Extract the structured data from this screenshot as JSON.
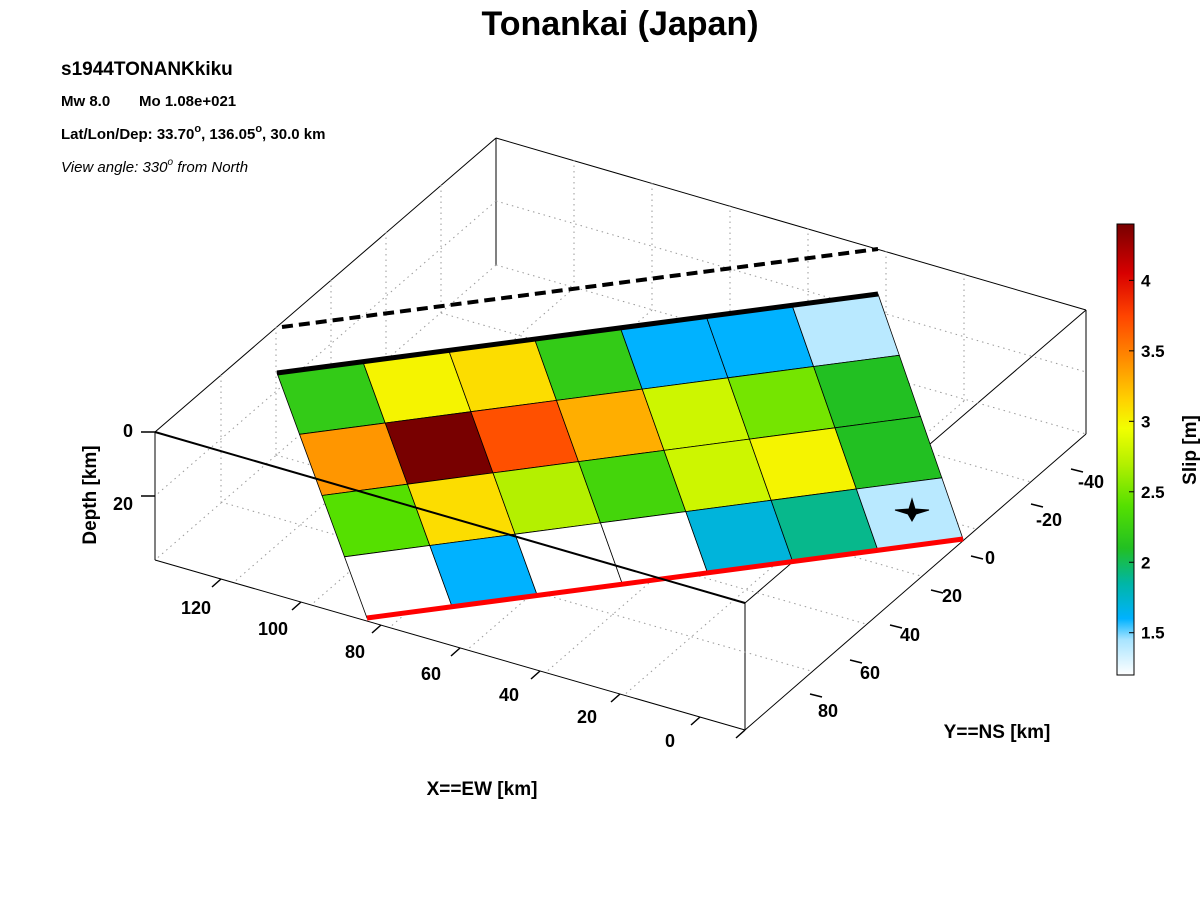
{
  "header": {
    "title": "Tonankai (Japan)",
    "event_id": "s1944TONANKkiku",
    "mw_label": "Mw 8.0",
    "mo_label": "Mo 1.08e+021",
    "location_prefix": "Lat/Lon/Dep: 33.70",
    "location_mid": ", 136.05",
    "location_suffix": ", 30.0 km",
    "degree_mark": "o",
    "view_prefix": "View angle: 330",
    "view_suffix": " from North"
  },
  "chart_data": {
    "type": "heatmap",
    "title": "Tonankai (Japan)",
    "xlabel": "X==EW [km]",
    "ylabel": "Y==NS [km]",
    "zlabel": "Depth [km]",
    "colorbar_label": "Slip [m]",
    "x_ticks": [
      "0",
      "20",
      "40",
      "60",
      "80",
      "100",
      "120"
    ],
    "y_ticks": [
      "-40",
      "-20",
      "0",
      "20",
      "40",
      "60",
      "80"
    ],
    "z_ticks": [
      "0",
      "20"
    ],
    "colorbar_ticks": [
      "1.5",
      "2",
      "2.5",
      "3",
      "3.5",
      "4"
    ],
    "colorbar_range": [
      1.2,
      4.4
    ],
    "grid": true,
    "slip_m_rows_top_to_bottom": [
      [
        2.2,
        3.0,
        3.1,
        2.2,
        1.6,
        1.6,
        1.4
      ],
      [
        3.4,
        4.4,
        3.7,
        3.3,
        2.8,
        2.5,
        2.1
      ],
      [
        2.4,
        3.1,
        2.7,
        2.3,
        2.8,
        3.0,
        2.1
      ],
      [
        1.2,
        1.6,
        1.2,
        1.2,
        1.7,
        1.9,
        1.4
      ]
    ],
    "colormap": [
      [
        1.2,
        "#ffffff"
      ],
      [
        1.45,
        "#a8e4ff"
      ],
      [
        1.6,
        "#00b2ff"
      ],
      [
        1.85,
        "#00b6a6"
      ],
      [
        2.1,
        "#22c022"
      ],
      [
        2.4,
        "#55e000"
      ],
      [
        2.7,
        "#b4f000"
      ],
      [
        2.95,
        "#f2ff00"
      ],
      [
        3.15,
        "#ffd200"
      ],
      [
        3.45,
        "#ff8a00"
      ],
      [
        3.75,
        "#ff4400"
      ],
      [
        4.05,
        "#d80000"
      ],
      [
        4.4,
        "#780000"
      ]
    ],
    "colors": {
      "top_edge": "#000000",
      "bottom_edge": "#ff0000",
      "hypocenter": "#000000"
    }
  }
}
